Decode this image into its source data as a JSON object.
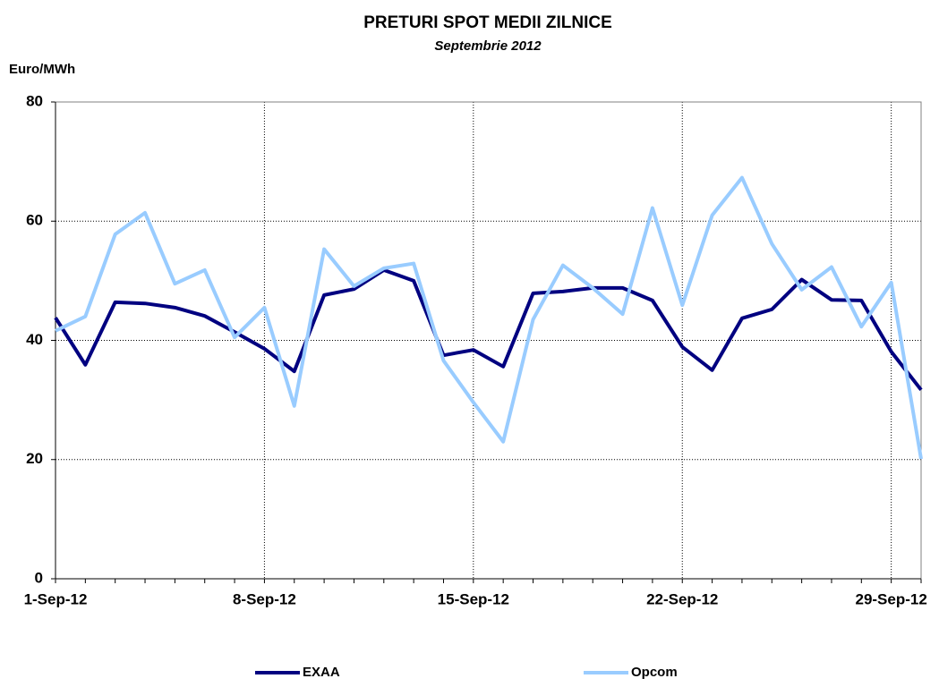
{
  "chart_data": {
    "type": "line",
    "title": "PRETURI SPOT MEDII ZILNICE",
    "subtitle": "Septembrie 2012",
    "y_label": "Euro/MWh",
    "categories": [
      "1-Sep-12",
      null,
      null,
      null,
      null,
      null,
      null,
      "8-Sep-12",
      null,
      null,
      null,
      null,
      null,
      null,
      "15-Sep-12",
      null,
      null,
      null,
      null,
      null,
      null,
      "22-Sep-12",
      null,
      null,
      null,
      null,
      null,
      null,
      "29-Sep-12",
      null
    ],
    "series": [
      {
        "name": "EXAA",
        "color": "#000080",
        "values": [
          43.8,
          35.9,
          46.4,
          46.2,
          45.5,
          44.1,
          41.4,
          38.6,
          34.8,
          47.6,
          48.6,
          51.8,
          50.0,
          37.5,
          38.4,
          35.6,
          47.9,
          48.2,
          48.8,
          48.8,
          46.7,
          38.9,
          35.0,
          43.7,
          45.2,
          50.2,
          46.8,
          46.7,
          38.1,
          31.7
        ]
      },
      {
        "name": "Opcom",
        "color": "#99ccff",
        "values": [
          41.6,
          44.0,
          57.8,
          61.4,
          49.5,
          51.8,
          40.5,
          45.5,
          29.0,
          55.3,
          49.1,
          52.1,
          52.9,
          36.6,
          29.6,
          23.0,
          43.5,
          52.6,
          48.8,
          44.4,
          62.2,
          45.9,
          61.0,
          67.3,
          56.2,
          48.5,
          52.3,
          42.3,
          49.7,
          20.1
        ]
      }
    ],
    "ylim": [
      0,
      80
    ],
    "yticks": [
      0,
      20,
      40,
      60,
      80
    ],
    "grid": true,
    "legend": "bottom"
  }
}
